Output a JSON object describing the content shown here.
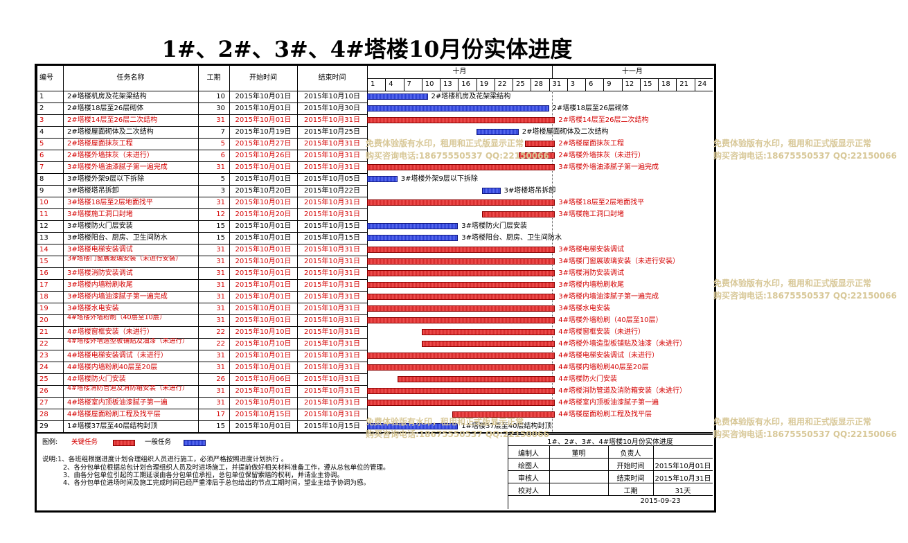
{
  "title": "1#、2#、3#、4#塔楼10月份实体进度",
  "headers": {
    "no": "编号",
    "task": "任务名称",
    "dur": "工期",
    "start": "开始时间",
    "end": "结束时间"
  },
  "months": [
    "十月",
    "十一月"
  ],
  "day_ticks": [
    "1",
    "4",
    "7",
    "10",
    "13",
    "16",
    "19",
    "22",
    "25",
    "28",
    "31",
    "3",
    "6",
    "9",
    "12",
    "15",
    "18",
    "21",
    "24"
  ],
  "chart_data": {
    "type": "table",
    "x_axis": {
      "start": "2015-10-01",
      "end": "2015-11-26",
      "unit": "day"
    },
    "tasks": [
      {
        "no": "1",
        "name": "2#塔楼机房及花架梁结构",
        "dur": "10",
        "start": "2015年10月01日",
        "end": "2015年10月10日",
        "critical": false,
        "s": 1,
        "e": 10,
        "bar_label": "2#塔楼机房及花架梁结构"
      },
      {
        "no": "2",
        "name": "2#塔楼18层至26层砌体",
        "dur": "30",
        "start": "2015年10月01日",
        "end": "2015年10月30日",
        "critical": false,
        "s": 1,
        "e": 30,
        "bar_label": "2#塔楼18层至26层砌体"
      },
      {
        "no": "3",
        "name": "2#塔楼14层至26层二次结构",
        "dur": "31",
        "start": "2015年10月01日",
        "end": "2015年10月31日",
        "critical": true,
        "s": 1,
        "e": 31,
        "bar_label": "2#塔楼14层至26层二次结构"
      },
      {
        "no": "4",
        "name": "2#塔楼屋面砌体及二次结构",
        "dur": "7",
        "start": "2015年10月19日",
        "end": "2015年10月25日",
        "critical": false,
        "s": 19,
        "e": 25,
        "bar_label": "2#塔楼屋面砌体及二次结构"
      },
      {
        "no": "5",
        "name": "2#塔楼屋面抹灰工程",
        "dur": "5",
        "start": "2015年10月27日",
        "end": "2015年10月31日",
        "critical": true,
        "s": 27,
        "e": 31,
        "bar_label": "2#塔楼屋面抹灰工程"
      },
      {
        "no": "6",
        "name": "2#塔楼外墙抹灰（未进行）",
        "dur": "6",
        "start": "2015年10月26日",
        "end": "2015年10月31日",
        "critical": true,
        "s": 26,
        "e": 31,
        "bar_label": "2#塔楼外墙抹灰（未进行）"
      },
      {
        "no": "7",
        "name": "3#塔楼外墙油漆腻子第一遍完成",
        "dur": "31",
        "start": "2015年10月01日",
        "end": "2015年10月31日",
        "critical": true,
        "s": 1,
        "e": 31,
        "bar_label": "3#塔楼外墙油漆腻子第一遍完成"
      },
      {
        "no": "8",
        "name": "3#塔楼外架9层以下拆除",
        "dur": "5",
        "start": "2015年10月01日",
        "end": "2015年10月05日",
        "critical": false,
        "s": 1,
        "e": 5,
        "bar_label": "3#塔楼外架9层以下拆除"
      },
      {
        "no": "9",
        "name": "3#塔楼塔吊拆卸",
        "dur": "3",
        "start": "2015年10月20日",
        "end": "2015年10月22日",
        "critical": false,
        "s": 20,
        "e": 22,
        "bar_label": "3#塔楼塔吊拆卸"
      },
      {
        "no": "10",
        "name": "3#塔楼18层至2层地面找平",
        "dur": "31",
        "start": "2015年10月01日",
        "end": "2015年10月31日",
        "critical": true,
        "s": 1,
        "e": 31,
        "bar_label": "3#塔楼18层至2层地面找平"
      },
      {
        "no": "11",
        "name": "3#塔楼施工洞口封堵",
        "dur": "12",
        "start": "2015年10月20日",
        "end": "2015年10月31日",
        "critical": true,
        "s": 20,
        "e": 31,
        "bar_label": "3#塔楼施工洞口封堵"
      },
      {
        "no": "12",
        "name": "3#塔楼防火门层安装",
        "dur": "15",
        "start": "2015年10月01日",
        "end": "2015年10月15日",
        "critical": false,
        "s": 1,
        "e": 15,
        "bar_label": "3#塔楼防火门层安装"
      },
      {
        "no": "13",
        "name": "3#塔楼阳台、厨房、卫生间防水",
        "dur": "15",
        "start": "2015年10月01日",
        "end": "2015年10月15日",
        "critical": false,
        "s": 1,
        "e": 15,
        "bar_label": "3#塔楼阳台、厨房、卫生间防水"
      },
      {
        "no": "14",
        "name": "3#塔楼电梯安装调试",
        "dur": "31",
        "start": "2015年10月01日",
        "end": "2015年10月31日",
        "critical": true,
        "s": 1,
        "e": 31,
        "bar_label": "3#塔楼电梯安装调试"
      },
      {
        "no": "15",
        "name": "3#塔楼门窗展玻璃安装（未进行安装）",
        "dur": "31",
        "start": "2015年10月01日",
        "end": "2015年10月31日",
        "critical": true,
        "s": 1,
        "e": 31,
        "bar_label": "3#塔楼门窗展玻璃安装（未进行安装）"
      },
      {
        "no": "16",
        "name": "3#塔楼消防安装调试",
        "dur": "31",
        "start": "2015年10月01日",
        "end": "2015年10月31日",
        "critical": true,
        "s": 1,
        "e": 31,
        "bar_label": "3#塔楼消防安装调试"
      },
      {
        "no": "17",
        "name": "3#塔楼内墙粉刷收尾",
        "dur": "31",
        "start": "2015年10月01日",
        "end": "2015年10月31日",
        "critical": true,
        "s": 1,
        "e": 31,
        "bar_label": "3#塔楼内墙粉刷收尾"
      },
      {
        "no": "18",
        "name": "3#塔楼内墙油漆腻子第一遍完成",
        "dur": "31",
        "start": "2015年10月01日",
        "end": "2015年10月31日",
        "critical": true,
        "s": 1,
        "e": 31,
        "bar_label": "3#塔楼内墙油漆腻子第一遍完成"
      },
      {
        "no": "19",
        "name": "3#塔楼水电安装",
        "dur": "31",
        "start": "2015年10月01日",
        "end": "2015年10月31日",
        "critical": true,
        "s": 1,
        "e": 31,
        "bar_label": "3#塔楼水电安装"
      },
      {
        "no": "20",
        "name": "4#塔楼外墙粉刷（40层至10层）",
        "dur": "31",
        "start": "2015年10月01日",
        "end": "2015年10月31日",
        "critical": true,
        "s": 1,
        "e": 31,
        "bar_label": "4#塔楼外墙粉刷（40层至10层）"
      },
      {
        "no": "21",
        "name": "4#塔楼窗框安装（未进行）",
        "dur": "22",
        "start": "2015年10月10日",
        "end": "2015年10月31日",
        "critical": true,
        "s": 10,
        "e": 31,
        "bar_label": "4#塔楼窗框安装（未进行）"
      },
      {
        "no": "22",
        "name": "4#塔楼外墙造型板铺贴及油漆（未进行）",
        "dur": "22",
        "start": "2015年10月10日",
        "end": "2015年10月31日",
        "critical": true,
        "s": 10,
        "e": 31,
        "bar_label": "4#塔楼外墙造型板铺贴及油漆（未进行）"
      },
      {
        "no": "23",
        "name": "4#塔楼电梯安装调试（未进行）",
        "dur": "31",
        "start": "2015年10月01日",
        "end": "2015年10月31日",
        "critical": true,
        "s": 1,
        "e": 31,
        "bar_label": "4#塔楼电梯安装调试（未进行）"
      },
      {
        "no": "24",
        "name": "4#塔楼内墙粉刷40层至20层",
        "dur": "31",
        "start": "2015年10月01日",
        "end": "2015年10月31日",
        "critical": true,
        "s": 1,
        "e": 31,
        "bar_label": "4#塔楼内墙粉刷40层至20层"
      },
      {
        "no": "25",
        "name": "4#塔楼防火门安装",
        "dur": "26",
        "start": "2015年10月06日",
        "end": "2015年10月31日",
        "critical": true,
        "s": 6,
        "e": 31,
        "bar_label": "4#塔楼防火门安装"
      },
      {
        "no": "26",
        "name": "4#塔楼消防管道及消防箱安装（未进行）",
        "dur": "31",
        "start": "2015年10月01日",
        "end": "2015年10月31日",
        "critical": true,
        "s": 1,
        "e": 31,
        "bar_label": "4#塔楼消防管道及消防箱安装（未进行）"
      },
      {
        "no": "27",
        "name": "4#塔楼室内顶板油漆腻子第一遍",
        "dur": "31",
        "start": "2015年10月01日",
        "end": "2015年10月31日",
        "critical": true,
        "s": 1,
        "e": 31,
        "bar_label": "4#塔楼室内顶板油漆腻子第一遍"
      },
      {
        "no": "28",
        "name": "4#塔楼屋面粉刷工程及找平层",
        "dur": "17",
        "start": "2015年10月15日",
        "end": "2015年10月31日",
        "critical": true,
        "s": 15,
        "e": 31,
        "bar_label": "4#塔楼屋面粉刷工程及找平层"
      },
      {
        "no": "29",
        "name": "1#塔楼37层至40层结构封顶",
        "dur": "15",
        "start": "2015年10月01日",
        "end": "2015年10月15日",
        "critical": false,
        "s": 1,
        "e": 15,
        "bar_label": "1#塔楼37层至40层结构封顶"
      }
    ]
  },
  "legend": {
    "label": "图例:",
    "critical": "关键任务",
    "normal": "一般任务"
  },
  "notes": [
    "说明:1、各班组根据进度计划合理组织人员进行施工，必须严格按照进度计划执行 。",
    "2、各分包单位根据总包计划合理组织人员及时进场施工，并提前做好相关材料准备工作，遵从总包单位的管理。",
    "3、由各分包单位引起的工期延误由各分包单位承担，总包单位保留索赔的权利，并请业主协调。",
    "4、各分包单位进场时间及施工完成时间已经严重滞后于总包给出的节点工期时间，望业主给予协调为感。"
  ],
  "sign": {
    "caption": "1#、2#、3#、4#塔楼10月份实体进度",
    "compiler_label": "编制人",
    "compiler": "董明",
    "responsible_label": "负责人",
    "drawer_label": "绘图人",
    "start_label": "开始时间",
    "start_value": "2015年10月01日",
    "reviewer_label": "审核人",
    "end_label": "结束时间",
    "end_value": "2015年10月31日",
    "checker_label": "校对人",
    "duration_label": "工期",
    "duration_value": "31天",
    "date": "2015-09-23"
  },
  "watermark": {
    "line1": "免费体验版有水印，租用和正式版显示正常",
    "line2": "购买咨询电话:18675550537 QQ:22150066"
  },
  "colors": {
    "critical": "#d42a2a",
    "normal": "#2a3fd4",
    "critical_text": "#d40000",
    "watermark": "#d8c898"
  }
}
